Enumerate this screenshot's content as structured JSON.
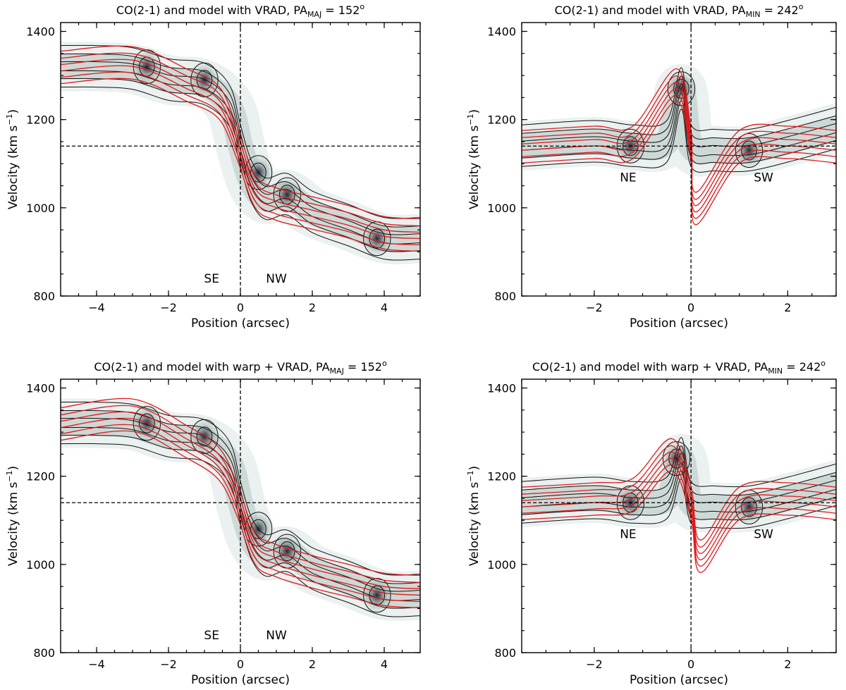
{
  "chart_data": [
    {
      "id": "p1",
      "type": "contour",
      "title_text": "CO(2-1) and model with VRAD, PA",
      "title_sub": "MAJ",
      "title_eq": " = 152",
      "title_sup": "o",
      "xlabel": "Position (arcsec)",
      "ylabel": "Velocity (km s",
      "ylabel_sup": "−1",
      "ylabel_close": ")",
      "xlim": [
        -5,
        5
      ],
      "ylim": [
        800,
        1420
      ],
      "xticks": [
        -4,
        -2,
        0,
        2,
        4
      ],
      "xtick_labels": [
        "−4",
        "−2",
        "0",
        "2",
        "4"
      ],
      "yticks": [
        800,
        1000,
        1200,
        1400
      ],
      "ytick_labels": [
        "800",
        "1000",
        "1200",
        "1400"
      ],
      "systemic_velocity": 1140,
      "center_position": 0,
      "labels": [
        {
          "text": "SE",
          "x": -0.8,
          "y": 830
        },
        {
          "text": "NW",
          "x": 1.0,
          "y": 830
        }
      ],
      "ridge": [
        [
          -5,
          1320
        ],
        [
          -4,
          1320
        ],
        [
          -3,
          1315
        ],
        [
          -2,
          1290
        ],
        [
          -1,
          1280
        ],
        [
          -0.3,
          1230
        ],
        [
          0,
          1140
        ],
        [
          0.3,
          1060
        ],
        [
          0.7,
          1020
        ],
        [
          1.3,
          1030
        ],
        [
          2,
          990
        ],
        [
          3,
          960
        ],
        [
          4,
          930
        ],
        [
          5,
          930
        ]
      ],
      "peaks": [
        [
          -1,
          1290
        ],
        [
          0.5,
          1080
        ],
        [
          1.3,
          1030
        ],
        [
          -2.6,
          1320
        ],
        [
          3.8,
          930
        ]
      ],
      "model_ridge": [
        [
          -5,
          1320
        ],
        [
          -3,
          1330
        ],
        [
          -1.5,
          1280
        ],
        [
          -0.6,
          1240
        ],
        [
          -0.1,
          1150
        ],
        [
          0.4,
          1040
        ],
        [
          1,
          1010
        ],
        [
          2,
          990
        ],
        [
          3,
          970
        ],
        [
          4,
          945
        ],
        [
          5,
          940
        ]
      ]
    },
    {
      "id": "p2",
      "type": "contour",
      "title_text": "CO(2-1) and model with VRAD, PA",
      "title_sub": "MIN",
      "title_eq": " = 242",
      "title_sup": "o",
      "xlabel": "Position (arcsec)",
      "ylabel": "Velocity (km s",
      "ylabel_sup": "−1",
      "ylabel_close": ")",
      "xlim": [
        -3.5,
        3
      ],
      "ylim": [
        800,
        1420
      ],
      "xticks": [
        -2,
        0,
        2
      ],
      "xtick_labels": [
        "−2",
        "0",
        "2"
      ],
      "yticks": [
        800,
        1000,
        1200,
        1400
      ],
      "ytick_labels": [
        "800",
        "1000",
        "1200",
        "1400"
      ],
      "systemic_velocity": 1140,
      "center_position": 0,
      "labels": [
        {
          "text": "NE",
          "x": -1.3,
          "y": 1060
        },
        {
          "text": "SW",
          "x": 1.5,
          "y": 1060
        }
      ],
      "ridge": [
        [
          -3.5,
          1140
        ],
        [
          -2,
          1150
        ],
        [
          -1.2,
          1140
        ],
        [
          -0.5,
          1150
        ],
        [
          -0.2,
          1270
        ],
        [
          0,
          1140
        ],
        [
          0.5,
          1130
        ],
        [
          1.2,
          1130
        ],
        [
          2,
          1150
        ],
        [
          3,
          1180
        ]
      ],
      "peaks": [
        [
          -1.25,
          1140
        ],
        [
          1.2,
          1130
        ],
        [
          -0.2,
          1270
        ]
      ],
      "model_ridge": [
        [
          -3.5,
          1140
        ],
        [
          -2,
          1150
        ],
        [
          -1.2,
          1150
        ],
        [
          -0.3,
          1280
        ],
        [
          0,
          1140
        ],
        [
          0.1,
          1000
        ],
        [
          1,
          1140
        ],
        [
          2,
          1150
        ],
        [
          3,
          1140
        ]
      ]
    },
    {
      "id": "p3",
      "type": "contour",
      "title_text": "CO(2-1) and model with warp + VRAD, PA",
      "title_sub": "MAJ",
      "title_eq": " = 152",
      "title_sup": "o",
      "xlabel": "Position (arcsec)",
      "ylabel": "Velocity (km s",
      "ylabel_sup": "−1",
      "ylabel_close": ")",
      "xlim": [
        -5,
        5
      ],
      "ylim": [
        800,
        1420
      ],
      "xticks": [
        -4,
        -2,
        0,
        2,
        4
      ],
      "xtick_labels": [
        "−4",
        "−2",
        "0",
        "2",
        "4"
      ],
      "yticks": [
        800,
        1000,
        1200,
        1400
      ],
      "ytick_labels": [
        "800",
        "1000",
        "1200",
        "1400"
      ],
      "systemic_velocity": 1140,
      "center_position": 0,
      "labels": [
        {
          "text": "SE",
          "x": -0.8,
          "y": 830
        },
        {
          "text": "NW",
          "x": 1.0,
          "y": 830
        }
      ],
      "ridge": [
        [
          -5,
          1320
        ],
        [
          -4,
          1320
        ],
        [
          -3,
          1315
        ],
        [
          -2,
          1290
        ],
        [
          -1,
          1280
        ],
        [
          -0.3,
          1230
        ],
        [
          0,
          1140
        ],
        [
          0.3,
          1060
        ],
        [
          0.7,
          1020
        ],
        [
          1.3,
          1030
        ],
        [
          2,
          990
        ],
        [
          3,
          960
        ],
        [
          4,
          930
        ],
        [
          5,
          930
        ]
      ],
      "peaks": [
        [
          -1,
          1290
        ],
        [
          0.5,
          1080
        ],
        [
          1.3,
          1030
        ],
        [
          -2.6,
          1320
        ],
        [
          3.8,
          930
        ]
      ],
      "model_ridge": [
        [
          -5,
          1320
        ],
        [
          -3,
          1340
        ],
        [
          -1.5,
          1280
        ],
        [
          -0.6,
          1230
        ],
        [
          -0.1,
          1150
        ],
        [
          0.4,
          1040
        ],
        [
          1,
          1010
        ],
        [
          2,
          985
        ],
        [
          3,
          965
        ],
        [
          4,
          945
        ],
        [
          5,
          940
        ]
      ]
    },
    {
      "id": "p4",
      "type": "contour",
      "title_text": "CO(2-1) and model with warp + VRAD, PA",
      "title_sub": "MIN",
      "title_eq": " = 242",
      "title_sup": "o",
      "xlabel": "Position (arcsec)",
      "ylabel": "Velocity (km s",
      "ylabel_sup": "−1",
      "ylabel_close": ")",
      "xlim": [
        -3.5,
        3
      ],
      "ylim": [
        800,
        1420
      ],
      "xticks": [
        -2,
        0,
        2
      ],
      "xtick_labels": [
        "−2",
        "0",
        "2"
      ],
      "yticks": [
        800,
        1000,
        1200,
        1400
      ],
      "ytick_labels": [
        "800",
        "1000",
        "1200",
        "1400"
      ],
      "systemic_velocity": 1140,
      "center_position": 0,
      "labels": [
        {
          "text": "NE",
          "x": -1.3,
          "y": 1060
        },
        {
          "text": "SW",
          "x": 1.5,
          "y": 1060
        }
      ],
      "ridge": [
        [
          -3.5,
          1140
        ],
        [
          -2,
          1150
        ],
        [
          -1.2,
          1140
        ],
        [
          -0.5,
          1150
        ],
        [
          -0.2,
          1240
        ],
        [
          0,
          1140
        ],
        [
          0.5,
          1130
        ],
        [
          1.2,
          1130
        ],
        [
          2,
          1150
        ],
        [
          3,
          1180
        ]
      ],
      "peaks": [
        [
          -1.25,
          1140
        ],
        [
          1.2,
          1130
        ],
        [
          -0.3,
          1240
        ]
      ],
      "model_ridge": [
        [
          -3.5,
          1140
        ],
        [
          -2,
          1150
        ],
        [
          -1.2,
          1160
        ],
        [
          -0.4,
          1250
        ],
        [
          0,
          1140
        ],
        [
          0.2,
          1020
        ],
        [
          1,
          1140
        ],
        [
          2,
          1150
        ],
        [
          3,
          1140
        ]
      ]
    }
  ],
  "colors": {
    "observed_contour": "#111111",
    "model_contour": "#e0191b",
    "intensity_low": "#e9f0ee",
    "intensity_mid": "#9aaeaa",
    "intensity_high": "#1c1a2e"
  }
}
